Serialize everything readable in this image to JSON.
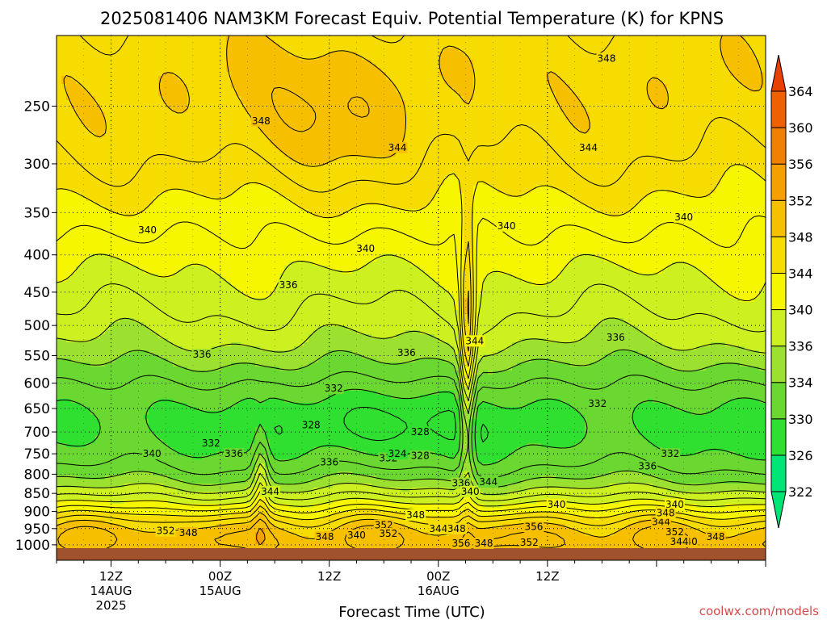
{
  "chart_data": {
    "type": "heatmap",
    "title": "2025081406 NAM3KM Forecast Equiv. Potential Temperature (K) for KPNS",
    "xlabel": "Forecast Time (UTC)",
    "ylabel": "",
    "y_axis": {
      "scale": "log",
      "reversed": true,
      "unit": "hPa",
      "ylim": [
        1050,
        200
      ],
      "ticks": [
        250,
        300,
        350,
        400,
        450,
        500,
        550,
        600,
        650,
        700,
        750,
        800,
        850,
        900,
        950,
        1000
      ]
    },
    "x_axis": {
      "ticks": [
        {
          "label": "12Z",
          "sublabel": "14AUG",
          "year": "2025"
        },
        {
          "label": "00Z",
          "sublabel": "15AUG",
          "year": ""
        },
        {
          "label": "12Z",
          "sublabel": "",
          "year": ""
        },
        {
          "label": "00Z",
          "sublabel": "16AUG",
          "year": ""
        },
        {
          "label": "12Z",
          "sublabel": "",
          "year": ""
        }
      ]
    },
    "grid": true,
    "colorbar": {
      "placement": "right",
      "levels": [
        322,
        326,
        330,
        334,
        336,
        340,
        344,
        348,
        352,
        356,
        360,
        364
      ],
      "colors": [
        "#00e676",
        "#30e030",
        "#6ad830",
        "#9ce030",
        "#cdf020",
        "#f6f600",
        "#f6dc00",
        "#f6c000",
        "#f5a000",
        "#f28000",
        "#ee6000",
        "#e84000"
      ]
    },
    "contour_labels": [
      {
        "value": "348",
        "hour": 22.5,
        "p": 262
      },
      {
        "value": "348",
        "hour": 60.5,
        "p": 215
      },
      {
        "value": "344",
        "hour": 37.5,
        "p": 285
      },
      {
        "value": "344",
        "hour": 58.5,
        "p": 285
      },
      {
        "value": "340",
        "hour": 10.0,
        "p": 370
      },
      {
        "value": "340",
        "hour": 34.0,
        "p": 392
      },
      {
        "value": "340",
        "hour": 49.5,
        "p": 365
      },
      {
        "value": "340",
        "hour": 69.0,
        "p": 355
      },
      {
        "value": "336",
        "hour": 16.0,
        "p": 548
      },
      {
        "value": "336",
        "hour": 25.5,
        "p": 440
      },
      {
        "value": "336",
        "hour": 38.5,
        "p": 545
      },
      {
        "value": "336",
        "hour": 61.5,
        "p": 519
      },
      {
        "value": "336",
        "hour": 19.5,
        "p": 750
      },
      {
        "value": "336",
        "hour": 30.0,
        "p": 770
      },
      {
        "value": "336",
        "hour": 44.5,
        "p": 823
      },
      {
        "value": "336",
        "hour": 65.0,
        "p": 780
      },
      {
        "value": "332",
        "hour": 30.5,
        "p": 610
      },
      {
        "value": "332",
        "hour": 59.5,
        "p": 640
      },
      {
        "value": "332",
        "hour": 17.0,
        "p": 725
      },
      {
        "value": "332",
        "hour": 36.5,
        "p": 760
      },
      {
        "value": "332",
        "hour": 67.5,
        "p": 750
      },
      {
        "value": "328",
        "hour": 28.0,
        "p": 685
      },
      {
        "value": "328",
        "hour": 40.0,
        "p": 700
      },
      {
        "value": "328",
        "hour": 40.0,
        "p": 755
      },
      {
        "value": "324",
        "hour": 37.5,
        "p": 750
      },
      {
        "value": "340",
        "hour": 10.5,
        "p": 750
      },
      {
        "value": "340",
        "hour": 45.5,
        "p": 845
      },
      {
        "value": "340",
        "hour": 55.0,
        "p": 880
      },
      {
        "value": "340",
        "hour": 68.0,
        "p": 880
      },
      {
        "value": "340",
        "hour": 33.0,
        "p": 970
      },
      {
        "value": "340",
        "hour": 69.5,
        "p": 990
      },
      {
        "value": "344",
        "hour": 23.5,
        "p": 845
      },
      {
        "value": "344",
        "hour": 47.5,
        "p": 820
      },
      {
        "value": "344",
        "hour": 46.0,
        "p": 525
      },
      {
        "value": "344",
        "hour": 42.0,
        "p": 950
      },
      {
        "value": "344",
        "hour": 66.5,
        "p": 930
      },
      {
        "value": "344",
        "hour": 68.5,
        "p": 990
      },
      {
        "value": "348",
        "hour": 39.5,
        "p": 910
      },
      {
        "value": "348",
        "hour": 44.0,
        "p": 950
      },
      {
        "value": "348",
        "hour": 14.5,
        "p": 963
      },
      {
        "value": "348",
        "hour": 29.5,
        "p": 975
      },
      {
        "value": "348",
        "hour": 67.0,
        "p": 905
      },
      {
        "value": "348",
        "hour": 47.0,
        "p": 995
      },
      {
        "value": "348",
        "hour": 72.5,
        "p": 975
      },
      {
        "value": "352",
        "hour": 12.0,
        "p": 957
      },
      {
        "value": "352",
        "hour": 36.0,
        "p": 940
      },
      {
        "value": "352",
        "hour": 36.5,
        "p": 965
      },
      {
        "value": "352",
        "hour": 52.0,
        "p": 993
      },
      {
        "value": "352",
        "hour": 68.0,
        "p": 960
      },
      {
        "value": "356",
        "hour": 44.5,
        "p": 995
      },
      {
        "value": "356",
        "hour": 52.5,
        "p": 945
      }
    ]
  },
  "credit": "coolwx.com/models"
}
